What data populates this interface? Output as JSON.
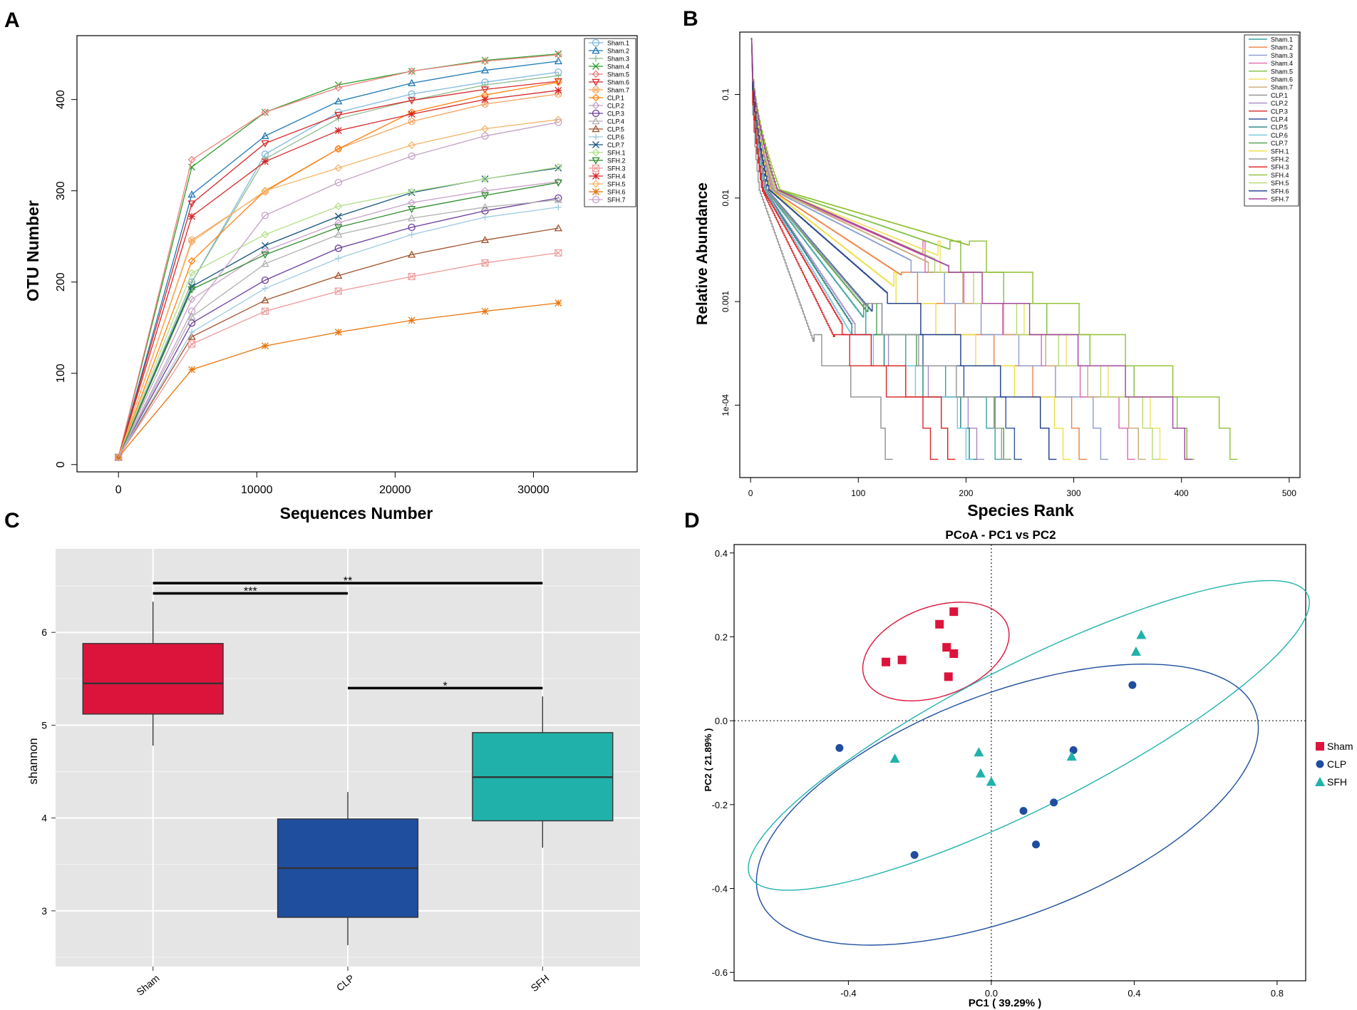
{
  "colors": {
    "sham_box": "#dc143c",
    "clp_box": "#1f4e9f",
    "sfh_box": "#20b2aa",
    "ggplot_bg": "#e5e5e5"
  },
  "chart_data": [
    {
      "panel_label": "A",
      "type": "line",
      "xlabel": "Sequences Number",
      "ylabel": "OTU Number",
      "xlim": [
        -3000,
        37500
      ],
      "ylim": [
        -8,
        470
      ],
      "x_ticks": [
        "0",
        "10000",
        "20000",
        "30000"
      ],
      "x_tick_values": [
        0,
        10000,
        20000,
        30000
      ],
      "y_ticks": [
        "0",
        "100",
        "200",
        "300",
        "400"
      ],
      "y_tick_values": [
        0,
        100,
        200,
        300,
        400
      ],
      "x": [
        0,
        5300,
        10600,
        15900,
        21200,
        26500,
        31800
      ],
      "series": [
        {
          "name": "Sham.1",
          "color": "#7fb8de",
          "marker": "circle",
          "values": [
            8,
            200,
            340,
            386,
            406,
            419,
            430
          ]
        },
        {
          "name": "Sham.2",
          "color": "#1f77b4",
          "marker": "triangle",
          "values": [
            8,
            296,
            360,
            398,
            418,
            432,
            442
          ]
        },
        {
          "name": "Sham.3",
          "color": "#8fbc8f",
          "marker": "plus",
          "values": [
            8,
            200,
            335,
            379,
            399,
            416,
            426
          ]
        },
        {
          "name": "Sham.4",
          "color": "#2ca02c",
          "marker": "x",
          "values": [
            8,
            326,
            386,
            416,
            431,
            443,
            450
          ]
        },
        {
          "name": "Sham.5",
          "color": "#f08080",
          "marker": "diamond",
          "values": [
            8,
            334,
            386,
            413,
            431,
            442,
            449
          ]
        },
        {
          "name": "Sham.6",
          "color": "#d62728",
          "marker": "triangle-down",
          "values": [
            8,
            286,
            352,
            383,
            399,
            411,
            420
          ]
        },
        {
          "name": "Sham.7",
          "color": "#f4a460",
          "marker": "circle-x",
          "values": [
            8,
            246,
            299,
            346,
            376,
            395,
            406
          ]
        },
        {
          "name": "CLP.1",
          "color": "#ff7f0e",
          "marker": "diamond",
          "values": [
            8,
            223,
            300,
            346,
            386,
            405,
            419
          ]
        },
        {
          "name": "CLP.2",
          "color": "#c8a2c8",
          "marker": "diamond",
          "values": [
            8,
            181,
            234,
            265,
            287,
            300,
            310
          ]
        },
        {
          "name": "CLP.3",
          "color": "#6a3d9a",
          "marker": "circle",
          "values": [
            8,
            155,
            202,
            237,
            260,
            278,
            292
          ]
        },
        {
          "name": "CLP.4",
          "color": "#b0b0b0",
          "marker": "triangle",
          "values": [
            8,
            162,
            220,
            252,
            270,
            282,
            290
          ]
        },
        {
          "name": "CLP.5",
          "color": "#a0522d",
          "marker": "triangle",
          "values": [
            8,
            140,
            180,
            207,
            230,
            246,
            259
          ]
        },
        {
          "name": "CLP.6",
          "color": "#9ecae1",
          "marker": "plus",
          "values": [
            8,
            145,
            193,
            226,
            252,
            271,
            282
          ]
        },
        {
          "name": "CLP.7",
          "color": "#17557d",
          "marker": "x",
          "values": [
            8,
            195,
            240,
            272,
            298,
            313,
            325
          ]
        },
        {
          "name": "SFH.1",
          "color": "#b2df8a",
          "marker": "diamond",
          "values": [
            8,
            210,
            252,
            283,
            299,
            313,
            326
          ]
        },
        {
          "name": "SFH.2",
          "color": "#2e8b2e",
          "marker": "triangle-down",
          "values": [
            8,
            192,
            230,
            260,
            280,
            295,
            309
          ]
        },
        {
          "name": "SFH.3",
          "color": "#ee9999",
          "marker": "square-x",
          "values": [
            8,
            132,
            168,
            190,
            206,
            221,
            232
          ]
        },
        {
          "name": "SFH.4",
          "color": "#d62728",
          "marker": "asterisk",
          "values": [
            8,
            272,
            332,
            366,
            384,
            400,
            410
          ]
        },
        {
          "name": "SFH.5",
          "color": "#f5b56b",
          "marker": "diamond",
          "values": [
            8,
            244,
            300,
            325,
            350,
            368,
            378
          ]
        },
        {
          "name": "SFH.6",
          "color": "#e8750c",
          "marker": "asterisk",
          "values": [
            8,
            104,
            130,
            145,
            158,
            168,
            177
          ]
        },
        {
          "name": "SFH.7",
          "color": "#c3a3c3",
          "marker": "circle",
          "values": [
            8,
            168,
            273,
            309,
            338,
            360,
            375
          ]
        }
      ]
    },
    {
      "panel_label": "B",
      "type": "line",
      "xlabel": "Species Rank",
      "ylabel": "Relative Abundance",
      "log_y": true,
      "xlim": [
        -10,
        510
      ],
      "ylim": [
        2e-05,
        0.4
      ],
      "x_ticks": [
        "0",
        "100",
        "200",
        "300",
        "400",
        "500"
      ],
      "x_tick_values": [
        0,
        100,
        200,
        300,
        400,
        500
      ],
      "y_ticks": [
        "0.1",
        "0.01",
        "0.001",
        "1e-04"
      ],
      "y_tick_values": [
        0.1,
        0.01,
        0.001,
        0.0001
      ],
      "floor_value": 3e-05,
      "series": [
        {
          "name": "Sham.1",
          "color": "#3aa0a0",
          "n_species": 232,
          "mid": 0.0007
        },
        {
          "name": "Sham.2",
          "color": "#f08040",
          "n_species": 310,
          "mid": 0.0018
        },
        {
          "name": "Sham.3",
          "color": "#8a9bd0",
          "n_species": 330,
          "mid": 0.0025
        },
        {
          "name": "Sham.4",
          "color": "#e066b0",
          "n_species": 355,
          "mid": 0.0028
        },
        {
          "name": "Sham.5",
          "color": "#7fbf3f",
          "n_species": 410,
          "mid": 0.0032
        },
        {
          "name": "Sham.6",
          "color": "#f0e060",
          "n_species": 385,
          "mid": 0.0028
        },
        {
          "name": "Sham.7",
          "color": "#c8a878",
          "n_species": 365,
          "mid": 0.0024
        },
        {
          "name": "CLP.1",
          "color": "#909090",
          "n_species": 130,
          "mid": 0.0004
        },
        {
          "name": "CLP.2",
          "color": "#a888c8",
          "n_species": 215,
          "mid": 0.0006
        },
        {
          "name": "CLP.3",
          "color": "#d62728",
          "n_species": 172,
          "mid": 0.00045
        },
        {
          "name": "CLP.4",
          "color": "#3050a0",
          "n_species": 250,
          "mid": 0.0008
        },
        {
          "name": "CLP.5",
          "color": "#208080",
          "n_species": 208,
          "mid": 0.0006
        },
        {
          "name": "CLP.6",
          "color": "#70c8e0",
          "n_species": 205,
          "mid": 0.0005
        },
        {
          "name": "CLP.7",
          "color": "#50a050",
          "n_species": 240,
          "mid": 0.0008
        },
        {
          "name": "SFH.1",
          "color": "#ece040",
          "n_species": 295,
          "mid": 0.0014
        },
        {
          "name": "SFH.2",
          "color": "#9a9a9a",
          "n_species": 238,
          "mid": 0.0009
        },
        {
          "name": "SFH.3",
          "color": "#e31a1c",
          "n_species": 188,
          "mid": 0.0006
        },
        {
          "name": "SFH.4",
          "color": "#90c030",
          "n_species": 450,
          "mid": 0.0035
        },
        {
          "name": "SFH.5",
          "color": "#b8d870",
          "n_species": 378,
          "mid": 0.0026
        },
        {
          "name": "SFH.6",
          "color": "#1a3a8a",
          "n_species": 282,
          "mid": 0.0012
        },
        {
          "name": "SFH.7",
          "color": "#a040a0",
          "n_species": 408,
          "mid": 0.0022
        }
      ]
    },
    {
      "panel_label": "C",
      "type": "box",
      "ylabel": "shannon",
      "ylim": [
        2.4,
        6.9
      ],
      "y_ticks": [
        "3",
        "4",
        "5",
        "6"
      ],
      "y_tick_values": [
        3,
        4,
        5,
        6
      ],
      "categories": [
        "Sham",
        "CLP",
        "SFH"
      ],
      "boxes": [
        {
          "name": "Sham",
          "min": 4.78,
          "q1": 5.12,
          "median": 5.45,
          "q3": 5.88,
          "max": 6.33,
          "color": "#dc143c"
        },
        {
          "name": "CLP",
          "min": 2.63,
          "q1": 2.93,
          "median": 3.46,
          "q3": 3.99,
          "max": 4.28,
          "color": "#1f4e9f"
        },
        {
          "name": "SFH",
          "min": 3.68,
          "q1": 3.97,
          "median": 4.44,
          "q3": 4.92,
          "max": 5.31,
          "color": "#20b2aa"
        }
      ],
      "significance": [
        {
          "from": "Sham",
          "to": "CLP",
          "y": 6.42,
          "label": "***"
        },
        {
          "from": "Sham",
          "to": "SFH",
          "y": 6.53,
          "label": "**"
        },
        {
          "from": "CLP",
          "to": "SFH",
          "y": 5.4,
          "label": "*"
        }
      ]
    },
    {
      "panel_label": "D",
      "type": "scatter",
      "title": "PCoA - PC1 vs PC2",
      "xlabel": "PC1 ( 39.29% )",
      "ylabel": "PC2 ( 21.89% )",
      "xlim": [
        -0.72,
        0.88
      ],
      "ylim": [
        -0.62,
        0.42
      ],
      "x_ticks": [
        "-0.4",
        "0.0",
        "0.4",
        "0.8"
      ],
      "x_tick_values": [
        -0.4,
        0.0,
        0.4,
        0.8
      ],
      "y_ticks": [
        "0.4",
        "0.2",
        "0.0",
        "-0.2",
        "-0.4",
        "-0.6"
      ],
      "y_tick_values": [
        0.4,
        0.2,
        0.0,
        -0.2,
        -0.4,
        -0.6
      ],
      "legend": [
        "Sham",
        "CLP",
        "SFH"
      ],
      "groups": [
        {
          "name": "Sham",
          "marker": "square",
          "color": "#dc143c",
          "points": [
            [
              -0.105,
              0.26
            ],
            [
              -0.145,
              0.23
            ],
            [
              -0.125,
              0.175
            ],
            [
              -0.105,
              0.16
            ],
            [
              -0.25,
              0.145
            ],
            [
              -0.295,
              0.14
            ],
            [
              -0.12,
              0.105
            ]
          ],
          "ellipse": {
            "cx": -0.155,
            "cy": 0.165,
            "rx": 0.21,
            "ry": 0.108,
            "angle_deg": 15
          }
        },
        {
          "name": "CLP",
          "marker": "circle",
          "color": "#1f4e9f",
          "points": [
            [
              0.395,
              0.085
            ],
            [
              -0.425,
              -0.065
            ],
            [
              0.23,
              -0.07
            ],
            [
              0.175,
              -0.195
            ],
            [
              0.09,
              -0.215
            ],
            [
              -0.215,
              -0.32
            ],
            [
              0.125,
              -0.295
            ]
          ],
          "ellipse": {
            "cx": 0.045,
            "cy": -0.2,
            "rx": 0.73,
            "ry": 0.27,
            "angle_deg": 17
          }
        },
        {
          "name": "SFH",
          "marker": "triangle",
          "color": "#20b2aa",
          "points": [
            [
              0.42,
              0.205
            ],
            [
              0.405,
              0.165
            ],
            [
              -0.27,
              -0.09
            ],
            [
              -0.035,
              -0.075
            ],
            [
              -0.03,
              -0.125
            ],
            [
              0.0,
              -0.145
            ],
            [
              0.225,
              -0.085
            ]
          ],
          "ellipse": {
            "cx": 0.105,
            "cy": -0.035,
            "rx": 0.85,
            "ry": 0.175,
            "angle_deg": 23
          }
        }
      ]
    }
  ]
}
